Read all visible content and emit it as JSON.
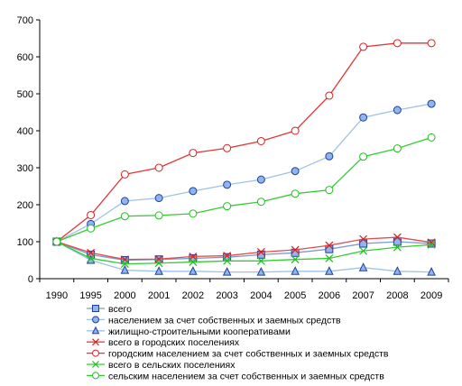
{
  "chart_data": {
    "type": "line",
    "x": [
      "1990",
      "1995",
      "2000",
      "2001",
      "2002",
      "2003",
      "2004",
      "2005",
      "2006",
      "2007",
      "2008",
      "2009"
    ],
    "ylim": [
      0,
      700
    ],
    "yticks": [
      0,
      100,
      200,
      300,
      400,
      500,
      600,
      700
    ],
    "grid": false,
    "legend_position": "bottom",
    "series": [
      {
        "name": "всего",
        "color": "#7a9ccf",
        "marker": "square",
        "markerFill": "#8fb4ee",
        "markerStroke": "#1f3f9f",
        "values": [
          100,
          65,
          50,
          52,
          55,
          58,
          65,
          70,
          80,
          95,
          100,
          95
        ]
      },
      {
        "name": "населением за счет собственных и заемных средств",
        "color": "#9cc3ea",
        "marker": "circle",
        "markerFill": "#8fb4ee",
        "markerStroke": "#1f3f9f",
        "values": [
          100,
          148,
          210,
          218,
          237,
          254,
          268,
          291,
          331,
          436,
          456,
          473
        ]
      },
      {
        "name": "жилищно-строительными кооперативами",
        "color": "#9cc3ea",
        "marker": "triangle",
        "markerFill": "#8fb4ee",
        "markerStroke": "#1f3f9f",
        "values": [
          100,
          50,
          23,
          20,
          20,
          18,
          18,
          20,
          20,
          30,
          20,
          18
        ]
      },
      {
        "name": "всего в городских поселениях",
        "color": "#e34a4a",
        "marker": "x",
        "markerFill": "none",
        "markerStroke": "#d62020",
        "values": [
          100,
          70,
          52,
          53,
          60,
          62,
          72,
          78,
          90,
          107,
          112,
          98
        ]
      },
      {
        "name": "городским населением за счет собственных и заемных средств",
        "color": "#e23636",
        "marker": "circle",
        "markerFill": "#ffffff",
        "markerStroke": "#d62020",
        "values": [
          100,
          172,
          282,
          300,
          340,
          353,
          372,
          400,
          495,
          627,
          637,
          637
        ]
      },
      {
        "name": "всего в сельских поселениях",
        "color": "#33cc33",
        "marker": "x",
        "markerFill": "none",
        "markerStroke": "#1fbf1f",
        "values": [
          100,
          55,
          40,
          42,
          45,
          48,
          48,
          52,
          55,
          75,
          85,
          92
        ]
      },
      {
        "name": "сельским населением за счет собственных и заемных средств",
        "color": "#33cc33",
        "marker": "circle",
        "markerFill": "#ffffff",
        "markerStroke": "#1fbf1f",
        "values": [
          100,
          136,
          169,
          171,
          176,
          196,
          208,
          230,
          240,
          330,
          352,
          382
        ]
      }
    ]
  }
}
